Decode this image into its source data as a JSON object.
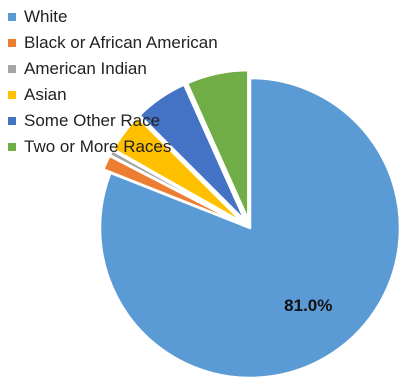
{
  "chart_data": {
    "type": "pie",
    "title": "",
    "categories": [
      "White",
      "Black or African American",
      "American Indian",
      "Asian",
      "Some Other Race",
      "Two or More Races"
    ],
    "values": [
      81.0,
      1.6,
      0.6,
      4.3,
      5.8,
      6.7
    ],
    "colors": [
      "#5B9BD5",
      "#ED7D31",
      "#A5A5A5",
      "#FFC000",
      "#4472C4",
      "#70AD47"
    ],
    "data_labels": [
      "81.0%",
      "",
      "",
      "",
      "",
      ""
    ],
    "exploded_slices": [
      "Black or African American",
      "American Indian",
      "Asian",
      "Some Other Race",
      "Two or More Races"
    ],
    "legend_position": "top-left"
  }
}
